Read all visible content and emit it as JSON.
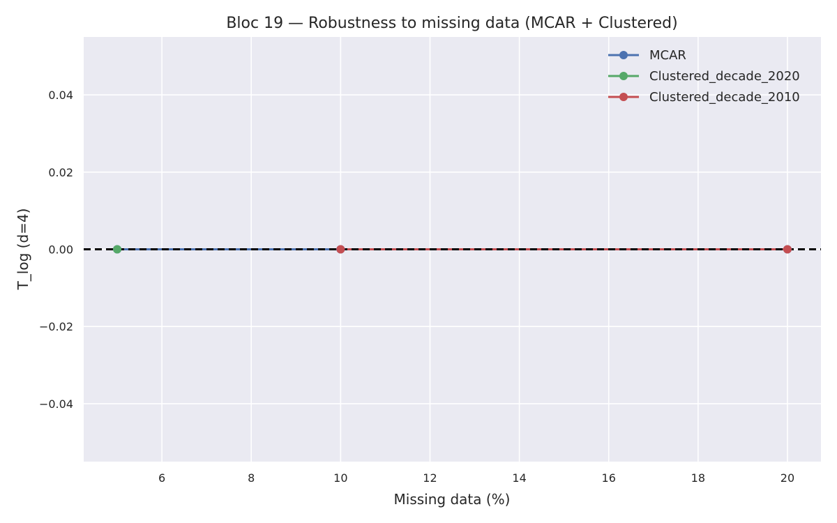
{
  "chart_data": {
    "type": "line",
    "title": "Bloc 19 — Robustness to missing data (MCAR + Clustered)",
    "xlabel": "Missing data (%)",
    "ylabel": "T_log (d=4)",
    "xlim": [
      4.25,
      20.75
    ],
    "ylim": [
      -0.055,
      0.055
    ],
    "xticks": [
      6,
      8,
      10,
      12,
      14,
      16,
      18,
      20
    ],
    "yticks": [
      -0.04,
      -0.02,
      0.0,
      0.02,
      0.04
    ],
    "xtick_labels": [
      "6",
      "8",
      "10",
      "12",
      "14",
      "16",
      "18",
      "20"
    ],
    "ytick_labels": [
      "−0.04",
      "−0.02",
      "0.00",
      "0.02",
      "0.04"
    ],
    "grid": true,
    "legend_position": "top-right",
    "reference_line": {
      "y": 0.0,
      "style": "dashed",
      "color": "#000000"
    },
    "series": [
      {
        "name": "MCAR",
        "color": "#4c72b0",
        "x": [
          5,
          10,
          20
        ],
        "y": [
          0.0,
          0.0,
          0.0
        ]
      },
      {
        "name": "Clustered_decade_2020",
        "color": "#55a868",
        "x": [
          5
        ],
        "y": [
          0.0
        ]
      },
      {
        "name": "Clustered_decade_2010",
        "color": "#c44e52",
        "x": [
          10,
          20
        ],
        "y": [
          0.0,
          0.0
        ]
      }
    ]
  }
}
